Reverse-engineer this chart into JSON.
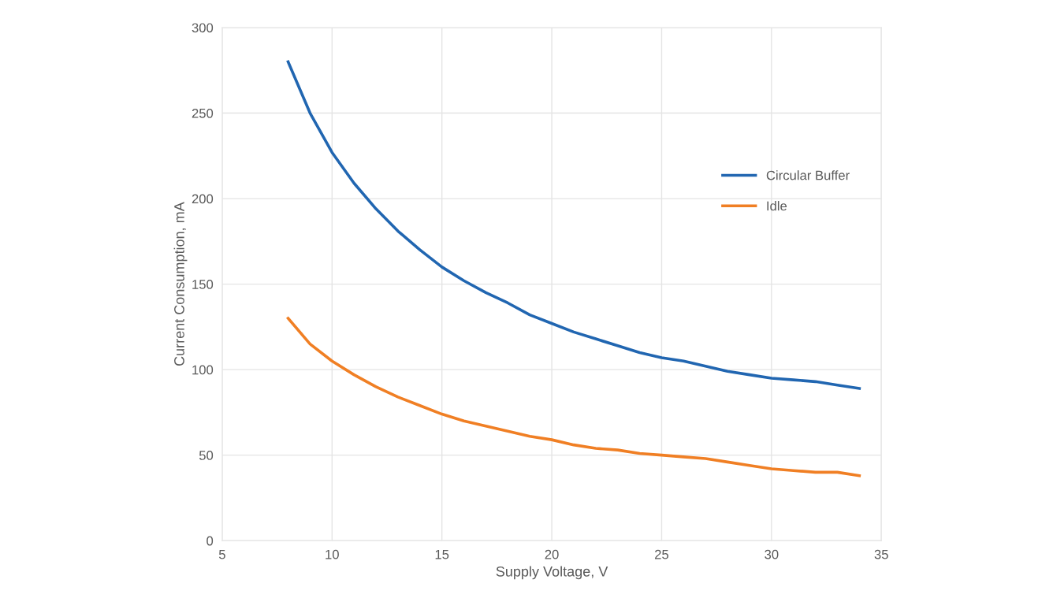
{
  "chart_data": {
    "type": "line",
    "xlabel": "Supply Voltage, V",
    "ylabel": "Current Consumption, mA",
    "x": [
      8,
      9,
      10,
      11,
      12,
      13,
      14,
      15,
      16,
      17,
      18,
      19,
      20,
      21,
      22,
      23,
      24,
      25,
      26,
      27,
      28,
      29,
      30,
      31,
      32,
      33,
      34
    ],
    "series": [
      {
        "name": "Circular Buffer",
        "color": "#2166b1",
        "values": [
          280,
          250,
          227,
          209,
          194,
          181,
          170,
          160,
          152,
          145,
          139,
          132,
          127,
          122,
          118,
          114,
          110,
          107,
          105,
          102,
          99,
          97,
          95,
          94,
          93,
          91,
          89
        ]
      },
      {
        "name": "Idle",
        "color": "#f07f24",
        "values": [
          130,
          115,
          105,
          97,
          90,
          84,
          79,
          74,
          70,
          67,
          64,
          61,
          59,
          56,
          54,
          53,
          51,
          50,
          49,
          48,
          46,
          44,
          42,
          41,
          40,
          40,
          38
        ]
      }
    ],
    "xlim": [
      5,
      35
    ],
    "xticks": [
      5,
      10,
      15,
      20,
      25,
      30,
      35
    ],
    "ylim": [
      0,
      300
    ],
    "yticks": [
      0,
      50,
      100,
      150,
      200,
      250,
      300
    ],
    "grid": true,
    "legend": "right",
    "marker": "none",
    "line_style": "solid"
  }
}
